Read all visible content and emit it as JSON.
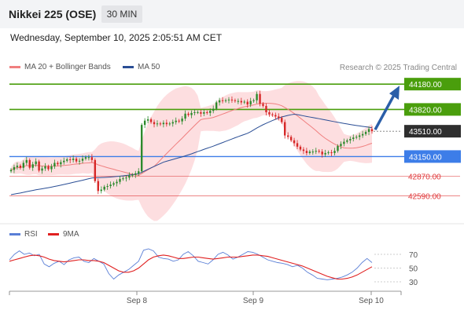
{
  "header": {
    "title": "Nikkei 225 (OSE)",
    "timeframe": "30 MIN",
    "datetime": "Wednesday, September 10, 2025 2:05:51 AM CET"
  },
  "legend": {
    "ma20_label": "MA 20 + Bollinger Bands",
    "ma50_label": "MA 50",
    "credit": "Research © 2025 Trading Central",
    "rsi_label": "RSI",
    "rsi_ma_label": "9MA"
  },
  "colors": {
    "resistance": "#4a9e0c",
    "support": "#3d7de8",
    "target_red": "#e0393b",
    "arrow": "#2a5ea8",
    "ma20": "#f07f7f",
    "ma50": "#2a4e95",
    "candle_up": "#2c8a2c",
    "candle_down": "#d62626",
    "bollinger": "#fcd3d6",
    "current_price": "#2e2e2e"
  },
  "chart_data": [
    {
      "type": "candlestick",
      "x_ticks": [
        "Sep 8",
        "Sep 9",
        "Sep 10"
      ],
      "levels": [
        {
          "value": 44180.0,
          "label": "44180.00",
          "kind": "resistance"
        },
        {
          "value": 43820.0,
          "label": "43820.00",
          "kind": "resistance"
        },
        {
          "value": 43510.0,
          "label": "43510.00",
          "kind": "current"
        },
        {
          "value": 43150.0,
          "label": "43150.00",
          "kind": "support"
        },
        {
          "value": 42870.0,
          "label": "42870.00",
          "kind": "support-target"
        },
        {
          "value": 42590.0,
          "label": "42590.00",
          "kind": "support-target"
        }
      ],
      "close": [
        42960,
        43000,
        43020,
        42990,
        43060,
        43100,
        42990,
        43040,
        43080,
        42950,
        42980,
        43010,
        42970,
        43010,
        43060,
        43040,
        43070,
        43090,
        43110,
        43100,
        43120,
        43080,
        43090,
        43120,
        43140,
        43140,
        43100,
        42800,
        42660,
        42680,
        42720,
        42730,
        42750,
        42770,
        42790,
        42830,
        42840,
        42850,
        42880,
        42890,
        42910,
        42940,
        43600,
        43660,
        43680,
        43640,
        43610,
        43620,
        43610,
        43630,
        43610,
        43620,
        43640,
        43660,
        43650,
        43690,
        43760,
        43740,
        43770,
        43780,
        43780,
        43760,
        43780,
        43770,
        43800,
        43830,
        43920,
        43950,
        43940,
        43950,
        43960,
        43950,
        43940,
        43940,
        43920,
        43930,
        43890,
        43940,
        43950,
        44040,
        43900,
        43870,
        43780,
        43750,
        43740,
        43720,
        43700,
        43640,
        43450,
        43430,
        43380,
        43340,
        43290,
        43250,
        43230,
        43200,
        43220,
        43220,
        43230,
        43220,
        43180,
        43200,
        43210,
        43200,
        43230,
        43300,
        43330,
        43360,
        43380,
        43400,
        43420,
        43430,
        43450,
        43470,
        43500,
        43540,
        43510
      ]
    },
    {
      "type": "line",
      "title": "RSI",
      "y_ticks": [
        70,
        50,
        30
      ],
      "series": [
        {
          "name": "RSI",
          "values": [
            62,
            70,
            75,
            70,
            72,
            68,
            70,
            56,
            52,
            57,
            60,
            55,
            62,
            65,
            66,
            60,
            58,
            64,
            60,
            56,
            42,
            34,
            40,
            44,
            48,
            54,
            60,
            76,
            78,
            75,
            66,
            64,
            63,
            60,
            62,
            70,
            74,
            68,
            60,
            58,
            56,
            62,
            70,
            73,
            69,
            63,
            66,
            70,
            74,
            73,
            70,
            66,
            62,
            60,
            58,
            57,
            55,
            52,
            54,
            50,
            44,
            40,
            35,
            34,
            33,
            34,
            35,
            37,
            40,
            44,
            50,
            58,
            64,
            58
          ]
        },
        {
          "name": "9MA",
          "values": [
            60,
            62,
            64,
            66,
            68,
            69,
            68,
            66,
            63,
            61,
            60,
            59,
            60,
            61,
            62,
            62,
            61,
            61,
            60,
            58,
            54,
            50,
            46,
            44,
            44,
            46,
            50,
            56,
            62,
            66,
            68,
            69,
            68,
            66,
            64,
            64,
            65,
            66,
            66,
            65,
            64,
            63,
            64,
            65,
            66,
            66,
            66,
            67,
            68,
            69,
            69,
            68,
            67,
            65,
            63,
            61,
            59,
            57,
            55,
            53,
            50,
            47,
            44,
            41,
            38,
            36,
            34,
            34,
            35,
            37,
            40,
            44,
            48,
            52
          ]
        }
      ]
    }
  ]
}
